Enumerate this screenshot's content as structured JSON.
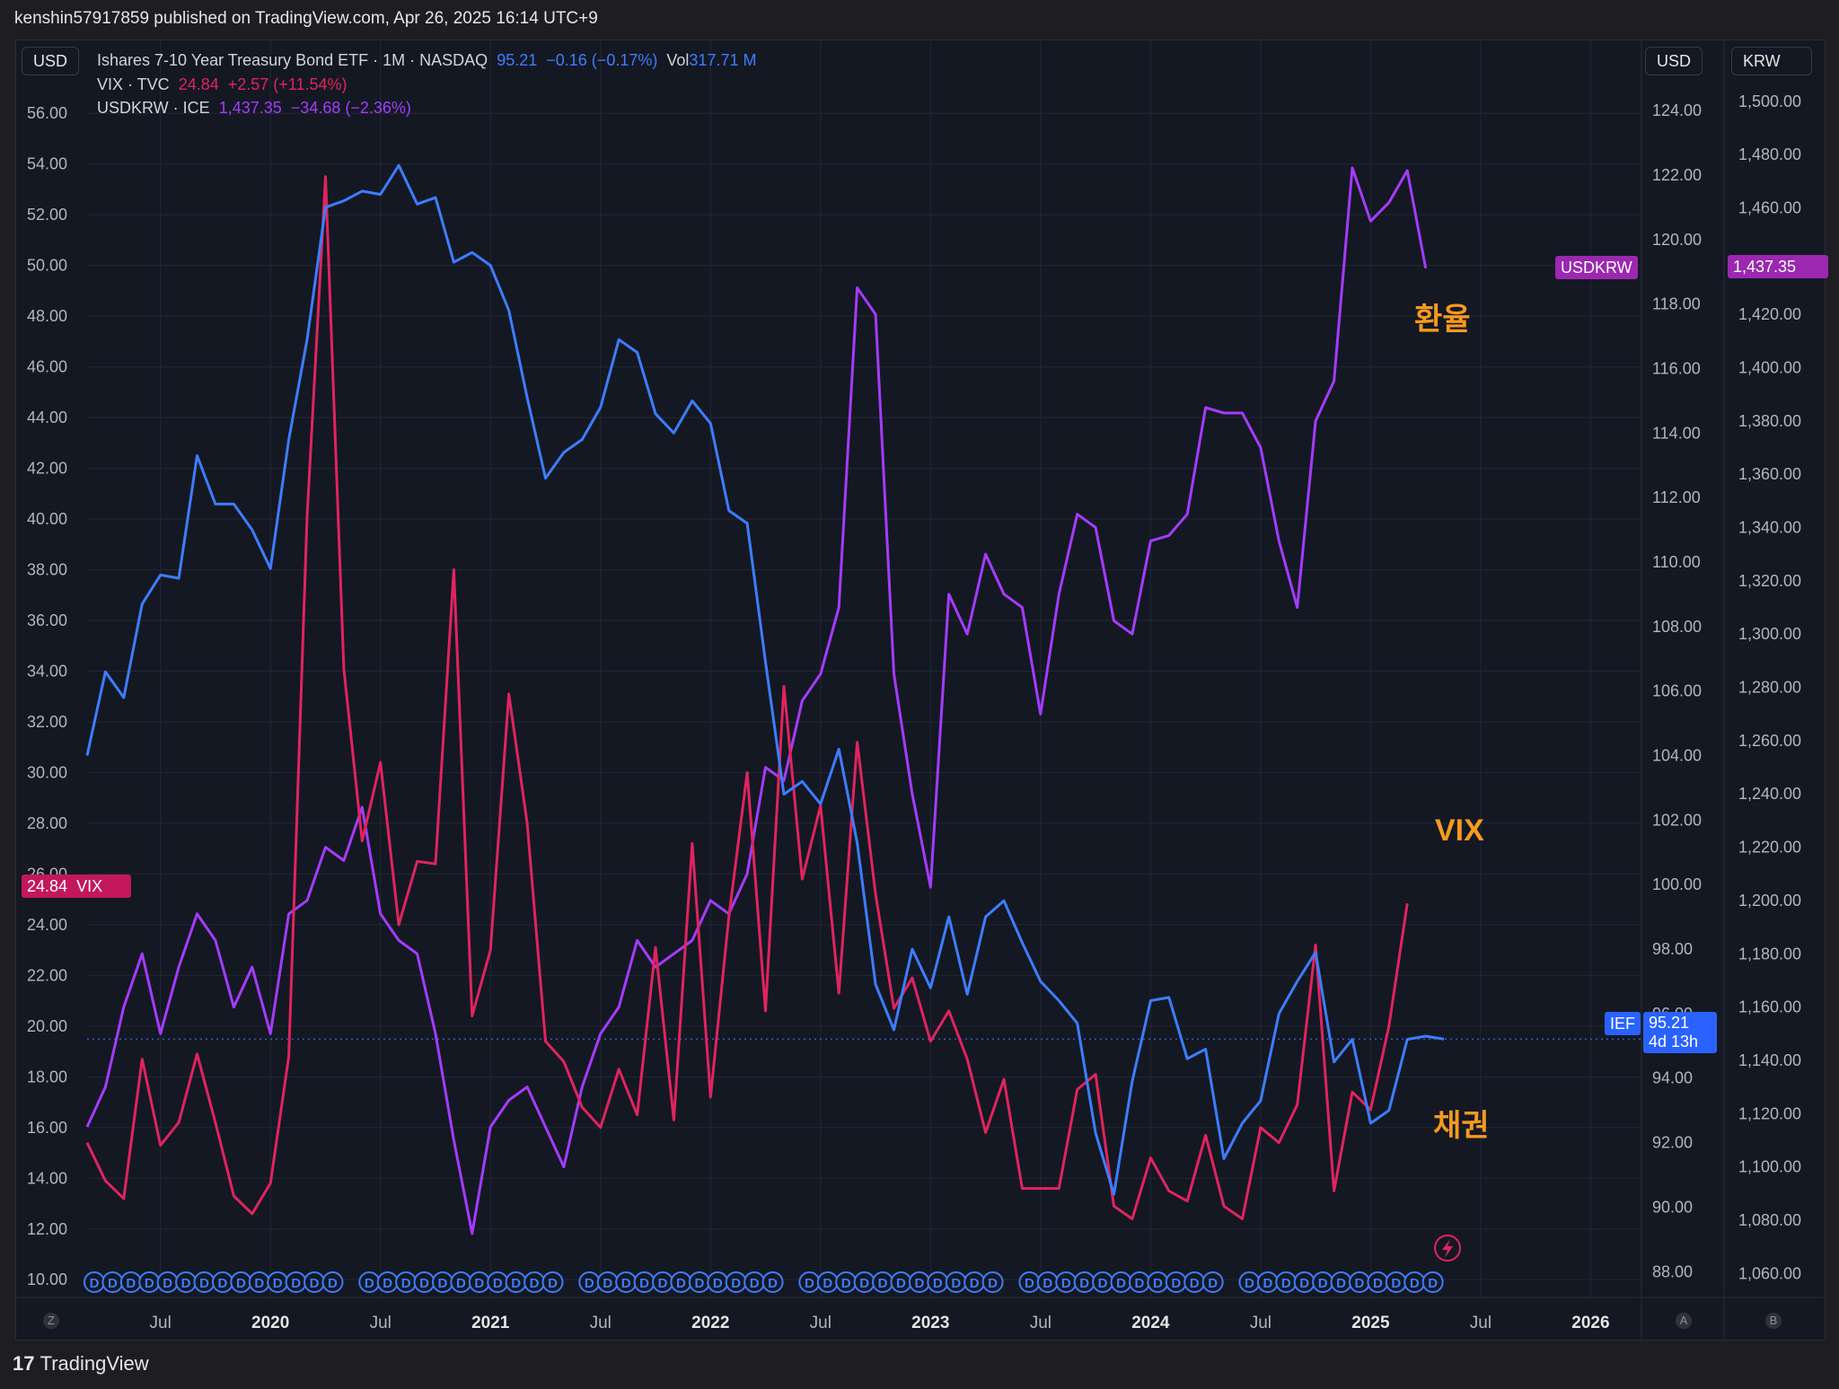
{
  "header": {
    "published_line": "kenshin57917859 published on TradingView.com, Apr 26, 2025 16:14 UTC+9"
  },
  "footer": {
    "brand": "TradingView"
  },
  "badges": {
    "left_currency": "USD",
    "right_currency_1": "USD",
    "right_currency_2": "KRW"
  },
  "legend": [
    {
      "name": "Ishares 7-10 Year Treasury Bond ETF · 1M · NASDAQ",
      "value": "95.21",
      "change": "−0.16 (−0.17%)",
      "vol_label": "Vol",
      "vol_value": "317.71 M",
      "color": "#3d7dff"
    },
    {
      "name": "VIX · TVC",
      "value": "24.84",
      "change": "+2.57 (+11.54%)",
      "color": "#e0245e"
    },
    {
      "name": "USDKRW · ICE",
      "value": "1,437.35",
      "change": "−34.68 (−2.36%)",
      "color": "#a43bff"
    }
  ],
  "price_tags": {
    "vix": {
      "value": "24.84",
      "label": "VIX"
    },
    "ief": {
      "label": "IEF",
      "value": "95.21",
      "countdown": "4d 13h"
    },
    "usdkrw": {
      "label": "USDKRW",
      "value": "1,437.35"
    }
  },
  "annotations": {
    "fx": "환율",
    "vix": "VIX",
    "bond": "채권"
  },
  "corner_buttons": {
    "left": "Z",
    "mid": "A",
    "right": "B"
  },
  "chart_data": {
    "type": "line",
    "x_labels": [
      "Jul",
      "2020",
      "Jul",
      "2021",
      "Jul",
      "2022",
      "Jul",
      "2023",
      "Jul",
      "2024",
      "Jul",
      "2025",
      "Jul",
      "2026"
    ],
    "axes": {
      "left_usd": {
        "ticks": [
          "56.00",
          "54.00",
          "52.00",
          "50.00",
          "48.00",
          "46.00",
          "44.00",
          "42.00",
          "40.00",
          "38.00",
          "36.00",
          "34.00",
          "32.00",
          "30.00",
          "28.00",
          "26.00",
          "24.00",
          "22.00",
          "20.00",
          "18.00",
          "16.00",
          "14.00",
          "12.00",
          "10.00"
        ],
        "range": [
          9.3,
          57.0
        ]
      },
      "right_usd": {
        "ticks": [
          "124.00",
          "122.00",
          "120.00",
          "118.00",
          "116.00",
          "114.00",
          "112.00",
          "110.00",
          "108.00",
          "106.00",
          "104.00",
          "102.00",
          "100.00",
          "98.00",
          "96.00",
          "94.00",
          "92.00",
          "90.00",
          "88.00"
        ],
        "range": [
          87.2,
          124.7
        ]
      },
      "right_krw": {
        "ticks": [
          "1,500.00",
          "1,480.00",
          "1,460.00",
          "1,440.00",
          "1,420.00",
          "1,400.00",
          "1,380.00",
          "1,360.00",
          "1,340.00",
          "1,320.00",
          "1,300.00",
          "1,280.00",
          "1,260.00",
          "1,240.00",
          "1,220.00",
          "1,200.00",
          "1,180.00",
          "1,160.00",
          "1,140.00",
          "1,120.00",
          "1,100.00",
          "1,080.00",
          "1,060.00"
        ],
        "range": [
          1051,
          1505
        ]
      }
    },
    "series": [
      {
        "name": "IEF",
        "axis": "right_usd",
        "color": "#3d7dff",
        "start": "2019-03",
        "values": [
          104.0,
          106.6,
          105.8,
          108.7,
          109.6,
          109.5,
          113.3,
          111.8,
          111.8,
          111.0,
          109.8,
          113.8,
          116.9,
          121.0,
          121.2,
          121.5,
          121.4,
          122.3,
          121.1,
          121.3,
          119.3,
          119.6,
          119.2,
          117.8,
          115.1,
          112.6,
          113.4,
          113.8,
          114.8,
          116.9,
          116.5,
          114.6,
          114.0,
          115.0,
          114.3,
          111.6,
          111.2,
          106.9,
          102.8,
          103.2,
          102.5,
          104.2,
          101.3,
          96.9,
          95.5,
          98.0,
          96.8,
          99.0,
          96.6,
          99.0,
          99.5,
          98.2,
          97.0,
          96.4,
          95.7,
          92.3,
          90.4,
          93.9,
          96.4,
          96.5,
          94.6,
          94.9,
          91.5,
          92.6,
          93.3,
          96.0,
          97.0,
          97.9,
          94.5,
          95.2,
          92.6,
          93.0,
          95.2,
          95.3,
          95.21
        ]
      },
      {
        "name": "VIX",
        "axis": "left_usd",
        "color": "#e0245e",
        "start": "2019-03",
        "values": [
          15.4,
          13.9,
          13.2,
          18.7,
          15.3,
          16.2,
          18.9,
          16.2,
          13.3,
          12.6,
          13.8,
          18.8,
          40.1,
          53.5,
          34.1,
          27.3,
          30.4,
          24.0,
          26.5,
          26.4,
          38.0,
          20.4,
          23.0,
          33.1,
          28.0,
          19.4,
          18.6,
          16.8,
          16.0,
          18.3,
          16.5,
          23.1,
          16.3,
          27.2,
          17.2,
          24.3,
          30.0,
          20.6,
          33.4,
          25.8,
          28.7,
          21.3,
          31.2,
          25.2,
          20.7,
          21.9,
          19.4,
          20.6,
          18.7,
          15.8,
          17.9,
          13.6,
          13.6,
          13.6,
          17.5,
          18.1,
          12.9,
          12.4,
          14.8,
          13.5,
          13.1,
          15.7,
          12.9,
          12.4,
          16.0,
          15.4,
          16.9,
          23.2,
          13.5,
          17.4,
          16.7,
          20.0,
          24.84
        ]
      },
      {
        "name": "USDKRW",
        "axis": "right_krw",
        "color": "#a43bff",
        "start": "2019-03",
        "values": [
          1115,
          1130,
          1160,
          1180,
          1150,
          1175,
          1195,
          1185,
          1160,
          1175,
          1150,
          1195,
          1200,
          1220,
          1215,
          1235,
          1195,
          1185,
          1180,
          1150,
          1110,
          1075,
          1115,
          1125,
          1130,
          1115,
          1100,
          1130,
          1150,
          1160,
          1185,
          1175,
          1180,
          1185,
          1200,
          1195,
          1210,
          1250,
          1245,
          1275,
          1285,
          1310,
          1430,
          1420,
          1285,
          1240,
          1205,
          1315,
          1300,
          1330,
          1315,
          1310,
          1270,
          1315,
          1345,
          1340,
          1305,
          1300,
          1335,
          1337,
          1345,
          1385,
          1383,
          1383,
          1370,
          1335,
          1310,
          1380,
          1395,
          1475,
          1455,
          1462,
          1474,
          1437.35
        ]
      }
    ],
    "reference_line": {
      "name": "IEF last",
      "axis": "right_usd",
      "value": 95.21
    },
    "grid": true
  }
}
